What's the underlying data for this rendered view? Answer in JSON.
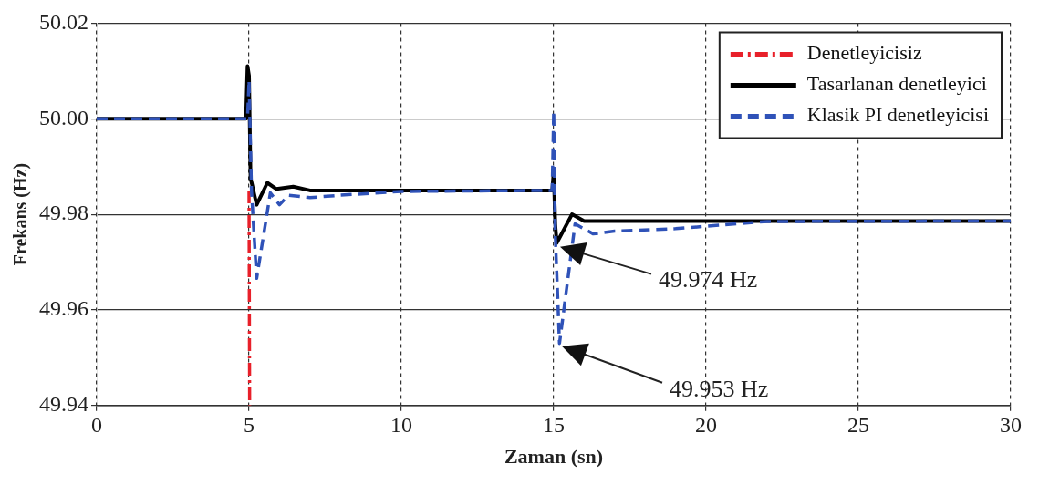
{
  "chart_data": {
    "type": "line",
    "xlabel": "Zaman (sn)",
    "ylabel": "Frekans (Hz)",
    "xlim": [
      0,
      30
    ],
    "xticks": [
      0,
      5,
      10,
      15,
      20,
      25,
      30
    ],
    "ylim": [
      49.94,
      50.02
    ],
    "yticks": [
      {
        "value": 49.94,
        "label": "49.94"
      },
      {
        "value": 49.96,
        "label": "49.96"
      },
      {
        "value": 49.98,
        "label": "49.98"
      },
      {
        "value": 50,
        "label": "50.00"
      },
      {
        "value": 50.02,
        "label": "50.02"
      }
    ],
    "grid": true,
    "legend": "top right",
    "marker": "none",
    "series": [
      {
        "name": "Denetleyicisiz",
        "color": "#e8202a",
        "line_style": "dashed",
        "x": [
          5.0,
          5.02
        ],
        "values": [
          49.985,
          49.94
        ]
      },
      {
        "name": "Tasarlanan denetleyici",
        "color": "#000000",
        "line_style": "solid",
        "x": [
          0,
          4.9,
          4.95,
          5.0,
          5.05,
          5.25,
          5.6,
          5.9,
          6.45,
          7,
          10,
          14.95,
          15.0,
          15.05,
          15.1,
          15.6,
          16,
          20,
          30
        ],
        "values": [
          50.0,
          50.0,
          50.011,
          50.009,
          49.9876,
          49.982,
          49.9866,
          49.9853,
          49.9858,
          49.985,
          49.985,
          49.985,
          49.989,
          49.978,
          49.974,
          49.98,
          49.9786,
          49.9786,
          49.9786
        ]
      },
      {
        "name": "Klasik PI denetleyicisi",
        "color": "#2f52b8",
        "line_style": "dashed",
        "x": [
          0,
          4.95,
          5.0,
          5.08,
          5.25,
          5.7,
          6.0,
          6.3,
          7,
          8,
          10,
          14.95,
          15.0,
          15.05,
          15.19,
          15.7,
          16.3,
          17,
          19,
          22,
          30
        ],
        "values": [
          50.0,
          50.0,
          50.008,
          49.985,
          49.9666,
          49.9845,
          49.982,
          49.984,
          49.9835,
          49.984,
          49.9848,
          49.985,
          50.0016,
          49.976,
          49.953,
          49.978,
          49.9759,
          49.9765,
          49.977,
          49.9785,
          49.9786
        ]
      }
    ],
    "annotations": [
      "49.974 Hz",
      "49.953 Hz"
    ]
  }
}
